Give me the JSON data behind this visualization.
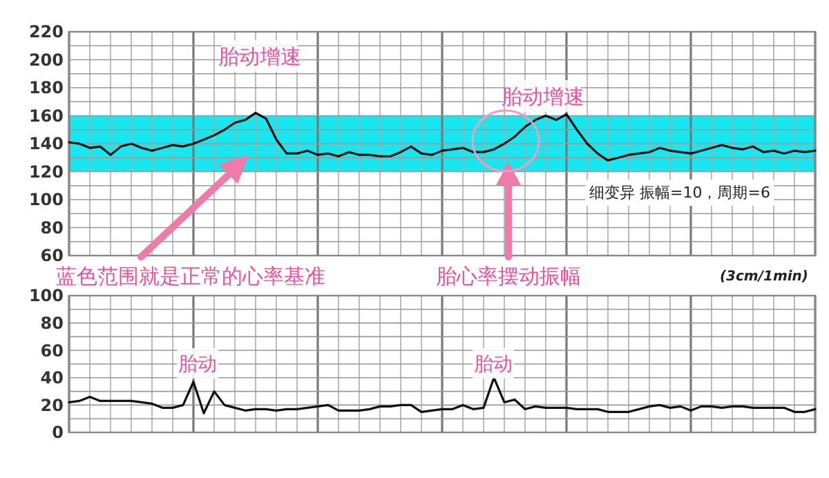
{
  "chart_data": [
    {
      "type": "line",
      "categories": [
        null,
        null,
        null,
        null,
        null,
        null,
        null,
        null,
        null,
        null,
        null,
        null,
        null,
        null,
        null,
        null,
        null,
        null,
        null,
        null,
        null,
        null,
        null,
        null,
        null,
        null,
        null,
        null,
        null,
        null,
        null,
        null,
        null,
        null,
        null,
        null,
        null,
        null,
        null,
        null,
        null,
        null,
        null,
        null,
        null,
        null,
        null,
        null,
        null,
        null,
        null,
        null,
        null,
        null,
        null,
        null,
        null,
        null,
        null,
        null,
        null,
        null,
        null,
        null,
        null,
        null,
        null,
        null,
        null,
        null,
        null,
        null,
        null
      ],
      "series": [
        {
          "color": "#111111",
          "values": [
            141,
            140,
            137,
            138,
            132,
            138,
            140,
            137,
            135,
            137,
            139,
            138,
            140,
            143,
            146,
            150,
            155,
            157,
            162,
            158,
            143,
            133,
            133,
            135,
            132,
            133,
            131,
            134,
            132,
            132,
            131,
            131,
            134,
            138,
            133,
            132,
            135,
            136,
            137,
            134,
            134,
            136,
            140,
            145,
            152,
            157,
            160,
            157,
            161,
            150,
            140,
            133,
            128,
            130,
            132,
            133,
            134,
            137,
            135,
            134,
            133,
            135,
            137,
            139,
            137,
            136,
            138,
            134,
            135,
            133,
            135,
            134,
            135
          ]
        }
      ],
      "ylim": [
        60,
        220
      ],
      "yticks": [
        60,
        {
          "value": 70,
          "label": null
        },
        80,
        {
          "value": 90,
          "label": null
        },
        100,
        {
          "value": 110,
          "label": null
        },
        120,
        {
          "value": 130,
          "label": null
        },
        140,
        {
          "value": 150,
          "label": null
        },
        160,
        {
          "value": 170,
          "label": null
        },
        180,
        {
          "value": 190,
          "label": null
        },
        200,
        {
          "value": 210,
          "label": null
        },
        220
      ],
      "tick_labels": "y",
      "grid": true,
      "bands": [
        {
          "axis": "y",
          "from": 120,
          "to": 160,
          "color": "#19e6ee"
        }
      ],
      "annotations": [
        "胎动增速",
        "胎动增速",
        "蓝色范围就是正常的心率基准",
        "胎心率摆动振幅",
        "细变异  振幅=10，周期=6",
        "(3cm/1min)"
      ]
    },
    {
      "type": "line",
      "categories": [
        null,
        null,
        null,
        null,
        null,
        null,
        null,
        null,
        null,
        null,
        null,
        null,
        null,
        null,
        null,
        null,
        null,
        null,
        null,
        null,
        null,
        null,
        null,
        null,
        null,
        null,
        null,
        null,
        null,
        null,
        null,
        null,
        null,
        null,
        null,
        null,
        null,
        null,
        null,
        null,
        null,
        null,
        null,
        null,
        null,
        null,
        null,
        null,
        null,
        null,
        null,
        null,
        null,
        null,
        null,
        null,
        null,
        null,
        null,
        null,
        null,
        null,
        null,
        null,
        null,
        null,
        null,
        null,
        null,
        null,
        null,
        null,
        null
      ],
      "series": [
        {
          "color": "#111111",
          "values": [
            22,
            23,
            26,
            23,
            23,
            23,
            23,
            22,
            21,
            18,
            18,
            20,
            37,
            14,
            30,
            20,
            18,
            16,
            17,
            17,
            16,
            17,
            17,
            18,
            19,
            20,
            16,
            16,
            16,
            17,
            19,
            19,
            20,
            20,
            15,
            16,
            17,
            17,
            20,
            17,
            18,
            40,
            22,
            24,
            17,
            19,
            18,
            18,
            18,
            17,
            17,
            17,
            15,
            15,
            15,
            17,
            19,
            20,
            18,
            19,
            16,
            19,
            19,
            18,
            19,
            19,
            18,
            18,
            18,
            18,
            15,
            15,
            17
          ]
        }
      ],
      "ylim": [
        0,
        100
      ],
      "yticks": [
        0,
        {
          "value": 10,
          "label": null
        },
        20,
        {
          "value": 30,
          "label": null
        },
        40,
        {
          "value": 50,
          "label": null
        },
        60,
        {
          "value": 70,
          "label": null
        },
        80,
        {
          "value": 90,
          "label": null
        },
        100
      ],
      "tick_labels": "y",
      "grid": true,
      "annotations": [
        "胎动",
        "胎动"
      ]
    }
  ]
}
